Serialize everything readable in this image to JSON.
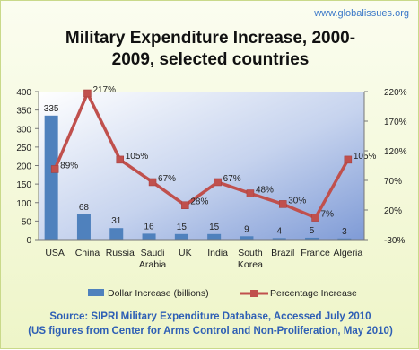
{
  "brand": "www.globalissues.org",
  "title_line1": "Military Expenditure Increase, 2000-",
  "title_line2": "2009, selected countries",
  "source_line1": "Source: SIPRI Military Expenditure Database, Accessed July 2010",
  "source_line2": "(US figures from Center for Arms Control and Non-Proliferation, May 2010)",
  "chart_data": {
    "type": "bar",
    "categories": [
      [
        "USA"
      ],
      [
        "China"
      ],
      [
        "Russia"
      ],
      [
        "Saudi",
        "Arabia"
      ],
      [
        "UK"
      ],
      [
        "India"
      ],
      [
        "South",
        "Korea"
      ],
      [
        "Brazil"
      ],
      [
        "France"
      ],
      [
        "Algeria"
      ]
    ],
    "series": [
      {
        "name": "Dollar Increase (billions)",
        "type": "bar",
        "axis": "left",
        "values": [
          335,
          68,
          31,
          16,
          15,
          15,
          9,
          4,
          5,
          3
        ],
        "labels": [
          "335",
          "68",
          "31",
          "16",
          "15",
          "15",
          "9",
          "4",
          "5",
          "3"
        ],
        "color": "#4f81bd"
      },
      {
        "name": "Percentage Increase",
        "type": "line",
        "axis": "right",
        "values": [
          89,
          217,
          105,
          67,
          28,
          67,
          48,
          30,
          7,
          105
        ],
        "labels": [
          "89%",
          "217%",
          "105%",
          "67%",
          "28%",
          "67%",
          "48%",
          "30%",
          "7%",
          "105%"
        ],
        "color": "#c0504d"
      }
    ],
    "y_left": {
      "min": 0,
      "max": 400,
      "ticks": [
        "0",
        "50",
        "100",
        "150",
        "200",
        "250",
        "300",
        "350",
        "400"
      ]
    },
    "y_right": {
      "min": -30,
      "max": 220,
      "ticks": [
        "-30%",
        "20%",
        "70%",
        "120%",
        "170%",
        "220%"
      ]
    },
    "legend_position": "bottom"
  }
}
